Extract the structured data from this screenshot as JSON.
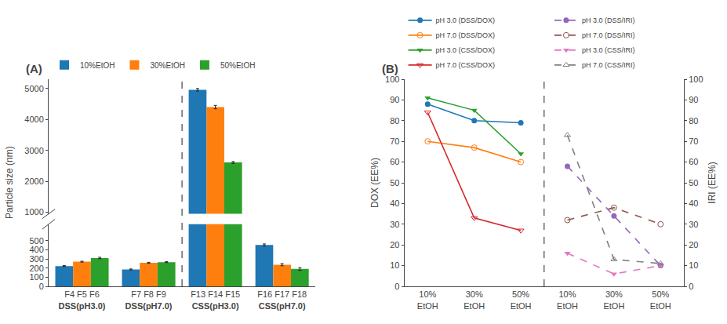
{
  "chart_data": [
    {
      "type": "bar",
      "title": "(A)",
      "ylabel": "Particle size (nm)",
      "categories": [
        "F4 F5 F6",
        "F7 F8 F9",
        "F13 F14 F15",
        "F16 F17 F18"
      ],
      "group_labels": [
        "DSS(pH3.0)",
        "DSS(pH7.0)",
        "CSS(pH3.0)",
        "CSS(pH7.0)"
      ],
      "series": [
        {
          "name": "10%EtOH",
          "values": [
            222,
            185,
            4960,
            452
          ],
          "errors": [
            5,
            5,
            40,
            12
          ]
        },
        {
          "name": "30%EtOH",
          "values": [
            270,
            258,
            4400,
            237
          ],
          "errors": [
            5,
            5,
            55,
            12
          ]
        },
        {
          "name": "50%EtOH",
          "values": [
            310,
            265,
            2610,
            190
          ],
          "errors": [
            8,
            5,
            30,
            15
          ]
        }
      ],
      "ylim": [
        0,
        5300
      ],
      "ybreak": [
        680,
        950
      ],
      "yticks": [
        0,
        100,
        200,
        300,
        400,
        500,
        1000,
        2000,
        3000,
        4000,
        5000
      ],
      "grid": false,
      "legend": "top"
    },
    {
      "type": "line",
      "title": "(B)",
      "ylabel": "DOX (EE%)",
      "y2label": "IRI (EE%)",
      "categories": [
        "10%\nEtOH",
        "30%\nEtOH",
        "50%\nEtOH",
        "10%\nEtOH",
        "30%\nEtOH",
        "50%\nEtOH"
      ],
      "series": [
        {
          "name": "pH 3.0 (DSS/DOX)",
          "values": [
            88,
            80,
            79,
            null,
            null,
            null
          ],
          "marker": "circle",
          "line_style": "solid"
        },
        {
          "name": "pH 7.0 (DSS/DOX)",
          "values": [
            70,
            67,
            60,
            null,
            null,
            null
          ],
          "marker": "circle-open",
          "line_style": "solid"
        },
        {
          "name": "pH 3.0 (CSS/DOX)",
          "values": [
            91,
            85,
            64,
            null,
            null,
            null
          ],
          "marker": "triangle-down",
          "line_style": "solid"
        },
        {
          "name": "pH 7.0 (CSS/DOX)",
          "values": [
            84,
            33,
            27,
            null,
            null,
            null
          ],
          "marker": "triangle-down-open",
          "line_style": "solid"
        },
        {
          "name": "pH 3.0 (DSS/IRI)",
          "axis": "y2",
          "values": [
            null,
            null,
            null,
            58,
            34,
            10
          ],
          "marker": "circle",
          "line_style": "dashed"
        },
        {
          "name": "pH 7.0 (DSS/IRI)",
          "axis": "y2",
          "values": [
            null,
            null,
            null,
            32,
            38,
            30
          ],
          "marker": "circle-open",
          "line_style": "dashed"
        },
        {
          "name": "pH 3.0 (CSS/IRI)",
          "axis": "y2",
          "values": [
            null,
            null,
            null,
            16,
            6,
            10
          ],
          "marker": "triangle-down",
          "line_style": "dashed"
        },
        {
          "name": "pH 7.0 (CSS/IRI)",
          "axis": "y2",
          "values": [
            null,
            null,
            null,
            73,
            13,
            11
          ],
          "marker": "triangle-up-open",
          "line_style": "dashed"
        }
      ],
      "ylim": [
        0,
        100
      ],
      "yticks": [
        0,
        10,
        20,
        30,
        40,
        50,
        60,
        70,
        80,
        90,
        100
      ],
      "y2lim": [
        0,
        100
      ],
      "y2ticks": [
        0,
        10,
        20,
        30,
        40,
        50,
        60,
        70,
        80,
        90,
        100
      ],
      "grid": false,
      "legend": "top"
    }
  ]
}
